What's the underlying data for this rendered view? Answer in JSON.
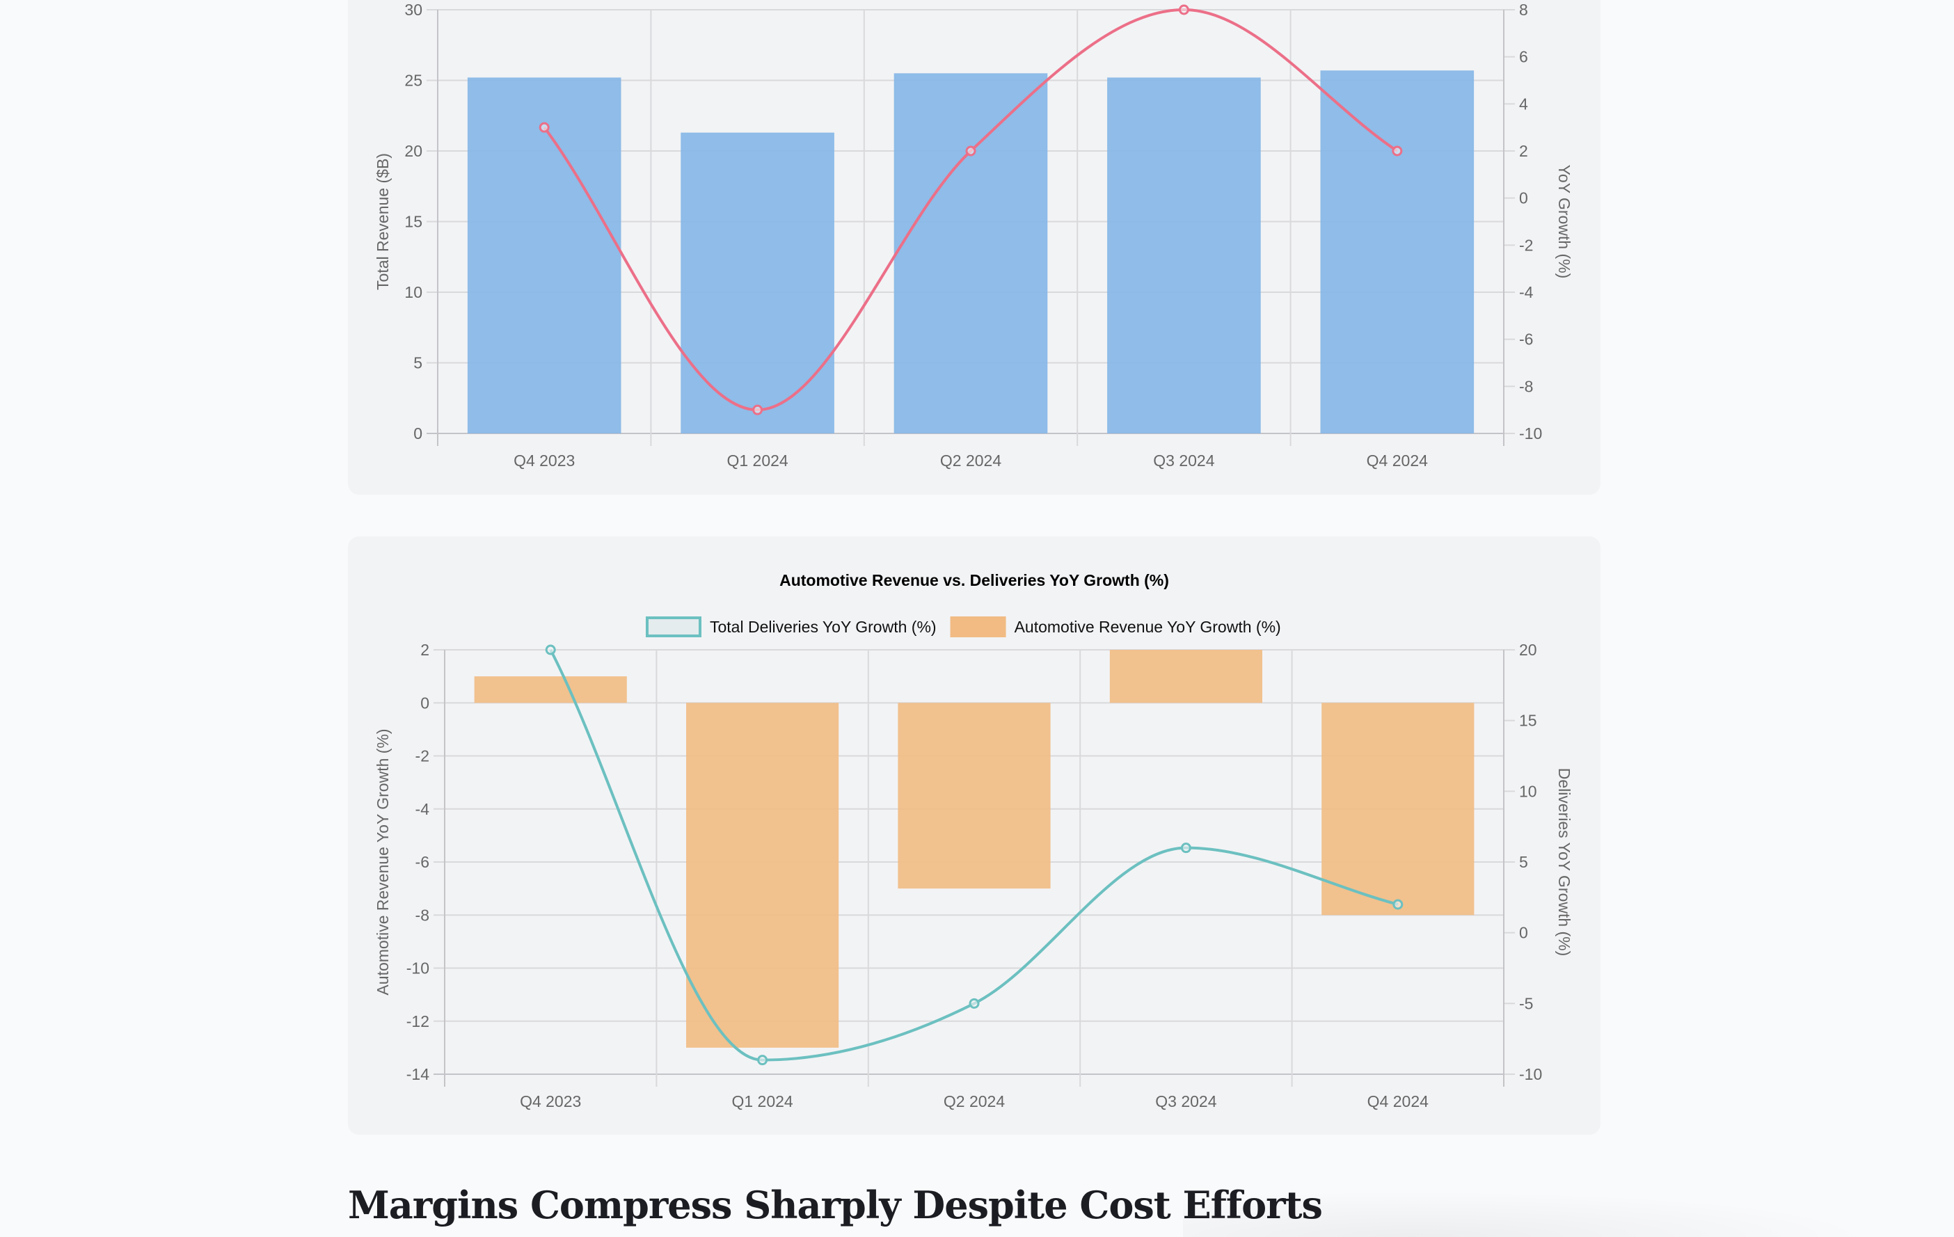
{
  "chart_data": [
    {
      "id": "revenue-chart",
      "type": "bar",
      "title": "",
      "categories": [
        "Q4 2023",
        "Q1 2024",
        "Q2 2024",
        "Q3 2024",
        "Q4 2024"
      ],
      "series": [
        {
          "name": "Total Revenue ($B)",
          "type": "bar",
          "axis": "left",
          "color": "#84b6e7",
          "values": [
            25.2,
            21.3,
            25.5,
            25.2,
            25.7
          ]
        },
        {
          "name": "YoY Growth (%)",
          "type": "line",
          "axis": "right",
          "color": "#ec6f88",
          "values": [
            3,
            -9,
            2,
            8,
            2
          ]
        }
      ],
      "ylabel": "Total Revenue ($B)",
      "ylim": [
        0,
        30
      ],
      "yticks": [
        "0",
        "5",
        "10",
        "15",
        "20",
        "25",
        "30"
      ],
      "y2label": "YoY Growth (%)",
      "y2lim": [
        -10,
        8
      ],
      "y2ticks": [
        "-10",
        "-8",
        "-6",
        "-4",
        "-2",
        "0",
        "2",
        "4",
        "6",
        "8"
      ],
      "grid": true,
      "legend": "none visible"
    },
    {
      "id": "automotive-chart",
      "type": "bar",
      "title": "Automotive Revenue vs. Deliveries YoY Growth (%)",
      "categories": [
        "Q4 2023",
        "Q1 2024",
        "Q2 2024",
        "Q3 2024",
        "Q4 2024"
      ],
      "series": [
        {
          "name": "Total Deliveries YoY Growth (%)",
          "type": "line",
          "axis": "right",
          "color": "#6cc0c0",
          "values": [
            20,
            -9,
            -5,
            6,
            2
          ]
        },
        {
          "name": "Automotive Revenue YoY Growth (%)",
          "type": "bar",
          "axis": "left",
          "color": "#f1bb83",
          "values": [
            1,
            -13,
            -7,
            2,
            -8
          ]
        }
      ],
      "ylabel": "Automotive Revenue YoY Growth (%)",
      "ylim": [
        -14,
        2
      ],
      "yticks": [
        "-14",
        "-12",
        "-10",
        "-8",
        "-6",
        "-4",
        "-2",
        "0",
        "2"
      ],
      "y2label": "Deliveries YoY Growth (%)",
      "y2lim": [
        -10,
        20
      ],
      "y2ticks": [
        "-10",
        "-5",
        "0",
        "5",
        "10",
        "15",
        "20"
      ],
      "grid": true,
      "legend": "top-center"
    }
  ],
  "section": {
    "heading": "Margins Compress Sharply Despite Cost Efforts"
  }
}
